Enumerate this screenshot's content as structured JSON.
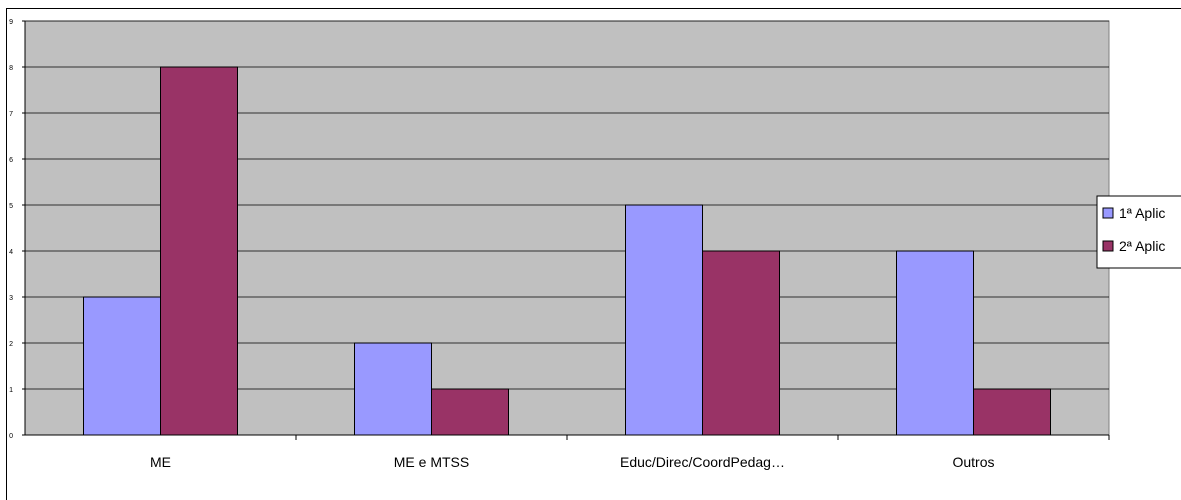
{
  "chart_data": {
    "type": "bar",
    "categories": [
      "ME",
      "ME e MTSS",
      "Educ/Direc/CoordPedag…",
      "Outros"
    ],
    "series": [
      {
        "name": "1ª Aplic",
        "values": [
          3,
          2,
          5,
          4
        ],
        "color": "#9999ff"
      },
      {
        "name": "2ª Aplic",
        "values": [
          8,
          1,
          4,
          1
        ],
        "color": "#993366"
      }
    ],
    "ylim": [
      0,
      9
    ],
    "yticks": [
      0,
      1,
      2,
      3,
      4,
      5,
      6,
      7,
      8,
      9
    ],
    "grid": true,
    "plot_background": "#c0c0c0",
    "legend_position": "right"
  }
}
